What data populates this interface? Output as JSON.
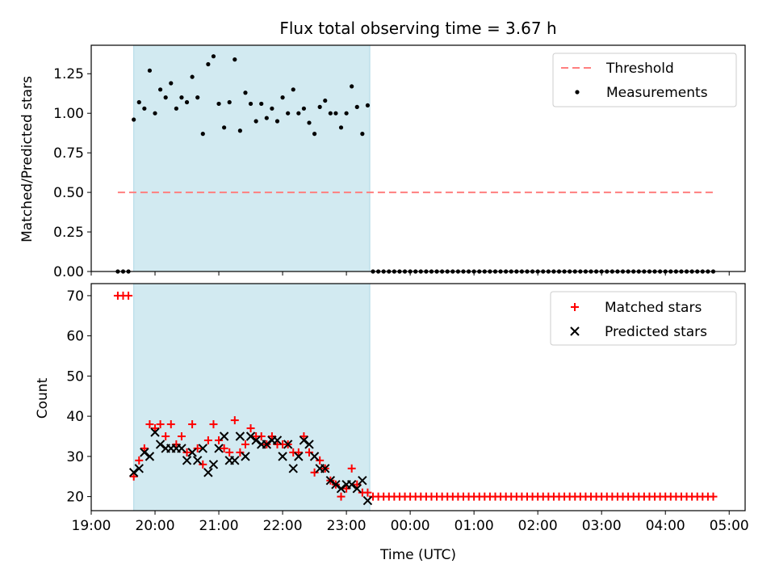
{
  "title": "Flux total observing time = 3.67 h",
  "colors": {
    "observing_span": "#add8e6",
    "threshold": "#ff7f7f",
    "measurements": "#000000",
    "matched": "#ff0000",
    "predicted": "#000000"
  },
  "chart_data": [
    {
      "type": "scatter",
      "ylabel": "Matched/Predicted stars",
      "ylim": [
        0,
        1.43
      ],
      "xlim": [
        "19:00",
        "05:15"
      ],
      "yticks": [
        "0.00",
        "0.25",
        "0.50",
        "0.75",
        "1.00",
        "1.25"
      ],
      "shaded_span": [
        "19:40",
        "23:22"
      ],
      "legend_position": "top-right",
      "legend": [
        "Threshold",
        "Measurements"
      ],
      "threshold": {
        "name": "Threshold",
        "y": 0.5,
        "x_range": [
          "19:25",
          "04:45"
        ]
      },
      "series": [
        {
          "name": "Measurements",
          "x": [
            "19:25",
            "19:30",
            "19:35",
            "19:40",
            "19:45",
            "19:50",
            "19:55",
            "20:00",
            "20:05",
            "20:10",
            "20:15",
            "20:20",
            "20:25",
            "20:30",
            "20:35",
            "20:40",
            "20:45",
            "20:50",
            "20:55",
            "21:00",
            "21:05",
            "21:10",
            "21:15",
            "21:20",
            "21:25",
            "21:30",
            "21:35",
            "21:40",
            "21:45",
            "21:50",
            "21:55",
            "22:00",
            "22:05",
            "22:10",
            "22:15",
            "22:20",
            "22:25",
            "22:30",
            "22:35",
            "22:40",
            "22:45",
            "22:50",
            "22:55",
            "23:00",
            "23:05",
            "23:10",
            "23:15",
            "23:20",
            "23:25",
            "23:30",
            "23:35",
            "23:40",
            "23:45",
            "23:50",
            "23:55",
            "00:00",
            "00:05",
            "00:10",
            "00:15",
            "00:20",
            "00:25",
            "00:30",
            "00:35",
            "00:40",
            "00:45",
            "00:50",
            "00:55",
            "01:00",
            "01:05",
            "01:10",
            "01:15",
            "01:20",
            "01:25",
            "01:30",
            "01:35",
            "01:40",
            "01:45",
            "01:50",
            "01:55",
            "02:00",
            "02:05",
            "02:10",
            "02:15",
            "02:20",
            "02:25",
            "02:30",
            "02:35",
            "02:40",
            "02:45",
            "02:50",
            "02:55",
            "03:00",
            "03:05",
            "03:10",
            "03:15",
            "03:20",
            "03:25",
            "03:30",
            "03:35",
            "03:40",
            "03:45",
            "03:50",
            "03:55",
            "04:00",
            "04:05",
            "04:10",
            "04:15",
            "04:20",
            "04:25",
            "04:30",
            "04:35",
            "04:40",
            "04:45"
          ],
          "y": [
            0,
            0,
            0,
            0.96,
            1.07,
            1.03,
            1.27,
            1.0,
            1.15,
            1.1,
            1.19,
            1.03,
            1.1,
            1.07,
            1.23,
            1.1,
            0.87,
            1.31,
            1.36,
            1.06,
            0.91,
            1.07,
            1.34,
            0.89,
            1.13,
            1.06,
            0.95,
            1.06,
            0.97,
            1.03,
            0.95,
            1.1,
            1.0,
            1.15,
            1.0,
            1.03,
            0.94,
            0.87,
            1.04,
            1.08,
            1.0,
            1.0,
            0.91,
            1.0,
            1.17,
            1.04,
            0.87,
            1.05,
            0,
            0,
            0,
            0,
            0,
            0,
            0,
            0,
            0,
            0,
            0,
            0,
            0,
            0,
            0,
            0,
            0,
            0,
            0,
            0,
            0,
            0,
            0,
            0,
            0,
            0,
            0,
            0,
            0,
            0,
            0,
            0,
            0,
            0,
            0,
            0,
            0,
            0,
            0,
            0,
            0,
            0,
            0,
            0,
            0,
            0,
            0,
            0,
            0,
            0,
            0,
            0,
            0,
            0,
            0,
            0,
            0,
            0,
            0,
            0,
            0,
            0,
            0,
            0,
            0
          ]
        }
      ]
    },
    {
      "type": "scatter",
      "xlabel": "Time (UTC)",
      "ylabel": "Count",
      "ylim": [
        16.5,
        73.0
      ],
      "yticks": [
        "20",
        "30",
        "40",
        "50",
        "60",
        "70"
      ],
      "xlim": [
        "19:00",
        "05:15"
      ],
      "xticks": [
        "19:00",
        "20:00",
        "21:00",
        "22:00",
        "23:00",
        "00:00",
        "01:00",
        "02:00",
        "03:00",
        "04:00",
        "05:00"
      ],
      "shaded_span": [
        "19:40",
        "23:22"
      ],
      "legend_position": "top-right",
      "legend": [
        "Matched stars",
        "Predicted stars"
      ],
      "series": [
        {
          "name": "Matched stars",
          "marker": "+",
          "x": [
            "19:25",
            "19:30",
            "19:35",
            "19:40",
            "19:45",
            "19:50",
            "19:55",
            "20:00",
            "20:05",
            "20:10",
            "20:15",
            "20:20",
            "20:25",
            "20:30",
            "20:35",
            "20:40",
            "20:45",
            "20:50",
            "20:55",
            "21:00",
            "21:05",
            "21:10",
            "21:15",
            "21:20",
            "21:25",
            "21:30",
            "21:35",
            "21:40",
            "21:45",
            "21:50",
            "21:55",
            "22:00",
            "22:05",
            "22:10",
            "22:15",
            "22:20",
            "22:25",
            "22:30",
            "22:35",
            "22:40",
            "22:45",
            "22:50",
            "22:55",
            "23:00",
            "23:05",
            "23:10",
            "23:15",
            "23:20",
            "23:25",
            "23:30",
            "23:35",
            "23:40",
            "23:45",
            "23:50",
            "23:55",
            "00:00",
            "00:05",
            "00:10",
            "00:15",
            "00:20",
            "00:25",
            "00:30",
            "00:35",
            "00:40",
            "00:45",
            "00:50",
            "00:55",
            "01:00",
            "01:05",
            "01:10",
            "01:15",
            "01:20",
            "01:25",
            "01:30",
            "01:35",
            "01:40",
            "01:45",
            "01:50",
            "01:55",
            "02:00",
            "02:05",
            "02:10",
            "02:15",
            "02:20",
            "02:25",
            "02:30",
            "02:35",
            "02:40",
            "02:45",
            "02:50",
            "02:55",
            "03:00",
            "03:05",
            "03:10",
            "03:15",
            "03:20",
            "03:25",
            "03:30",
            "03:35",
            "03:40",
            "03:45",
            "03:50",
            "03:55",
            "04:00",
            "04:05",
            "04:10",
            "04:15",
            "04:20",
            "04:25",
            "04:30",
            "04:35",
            "04:40",
            "04:45"
          ],
          "y": [
            70,
            70,
            70,
            25,
            29,
            32,
            38,
            37,
            38,
            35,
            38,
            33,
            35,
            31,
            38,
            32,
            28,
            34,
            38,
            34,
            32,
            31,
            39,
            31,
            33,
            37,
            35,
            35,
            33,
            35,
            33,
            33,
            33,
            31,
            31,
            35,
            31,
            26,
            29,
            27,
            24,
            23,
            20,
            22,
            27,
            23,
            21,
            21,
            20,
            20,
            20,
            20,
            20,
            20,
            20,
            20,
            20,
            20,
            20,
            20,
            20,
            20,
            20,
            20,
            20,
            20,
            20,
            20,
            20,
            20,
            20,
            20,
            20,
            20,
            20,
            20,
            20,
            20,
            20,
            20,
            20,
            20,
            20,
            20,
            20,
            20,
            20,
            20,
            20,
            20,
            20,
            20,
            20,
            20,
            20,
            20,
            20,
            20,
            20,
            20,
            20,
            20,
            20,
            20,
            20,
            20,
            20,
            20,
            20,
            20,
            20,
            20,
            20
          ]
        },
        {
          "name": "Predicted stars",
          "marker": "x",
          "x": [
            "19:40",
            "19:45",
            "19:50",
            "19:55",
            "20:00",
            "20:05",
            "20:10",
            "20:15",
            "20:20",
            "20:25",
            "20:30",
            "20:35",
            "20:40",
            "20:45",
            "20:50",
            "20:55",
            "21:00",
            "21:05",
            "21:10",
            "21:15",
            "21:20",
            "21:25",
            "21:30",
            "21:35",
            "21:40",
            "21:45",
            "21:50",
            "21:55",
            "22:00",
            "22:05",
            "22:10",
            "22:15",
            "22:20",
            "22:25",
            "22:30",
            "22:35",
            "22:40",
            "22:45",
            "22:50",
            "22:55",
            "23:00",
            "23:05",
            "23:10",
            "23:15",
            "23:20"
          ],
          "y": [
            26,
            27,
            31,
            30,
            36,
            33,
            32,
            32,
            32,
            32,
            29,
            31,
            29,
            32,
            26,
            28,
            32,
            35,
            29,
            29,
            35,
            30,
            35,
            34,
            33,
            33,
            34,
            34,
            30,
            33,
            27,
            30,
            34,
            33,
            30,
            27,
            27,
            24,
            23,
            22,
            23,
            23,
            22,
            24,
            19
          ]
        }
      ]
    }
  ]
}
